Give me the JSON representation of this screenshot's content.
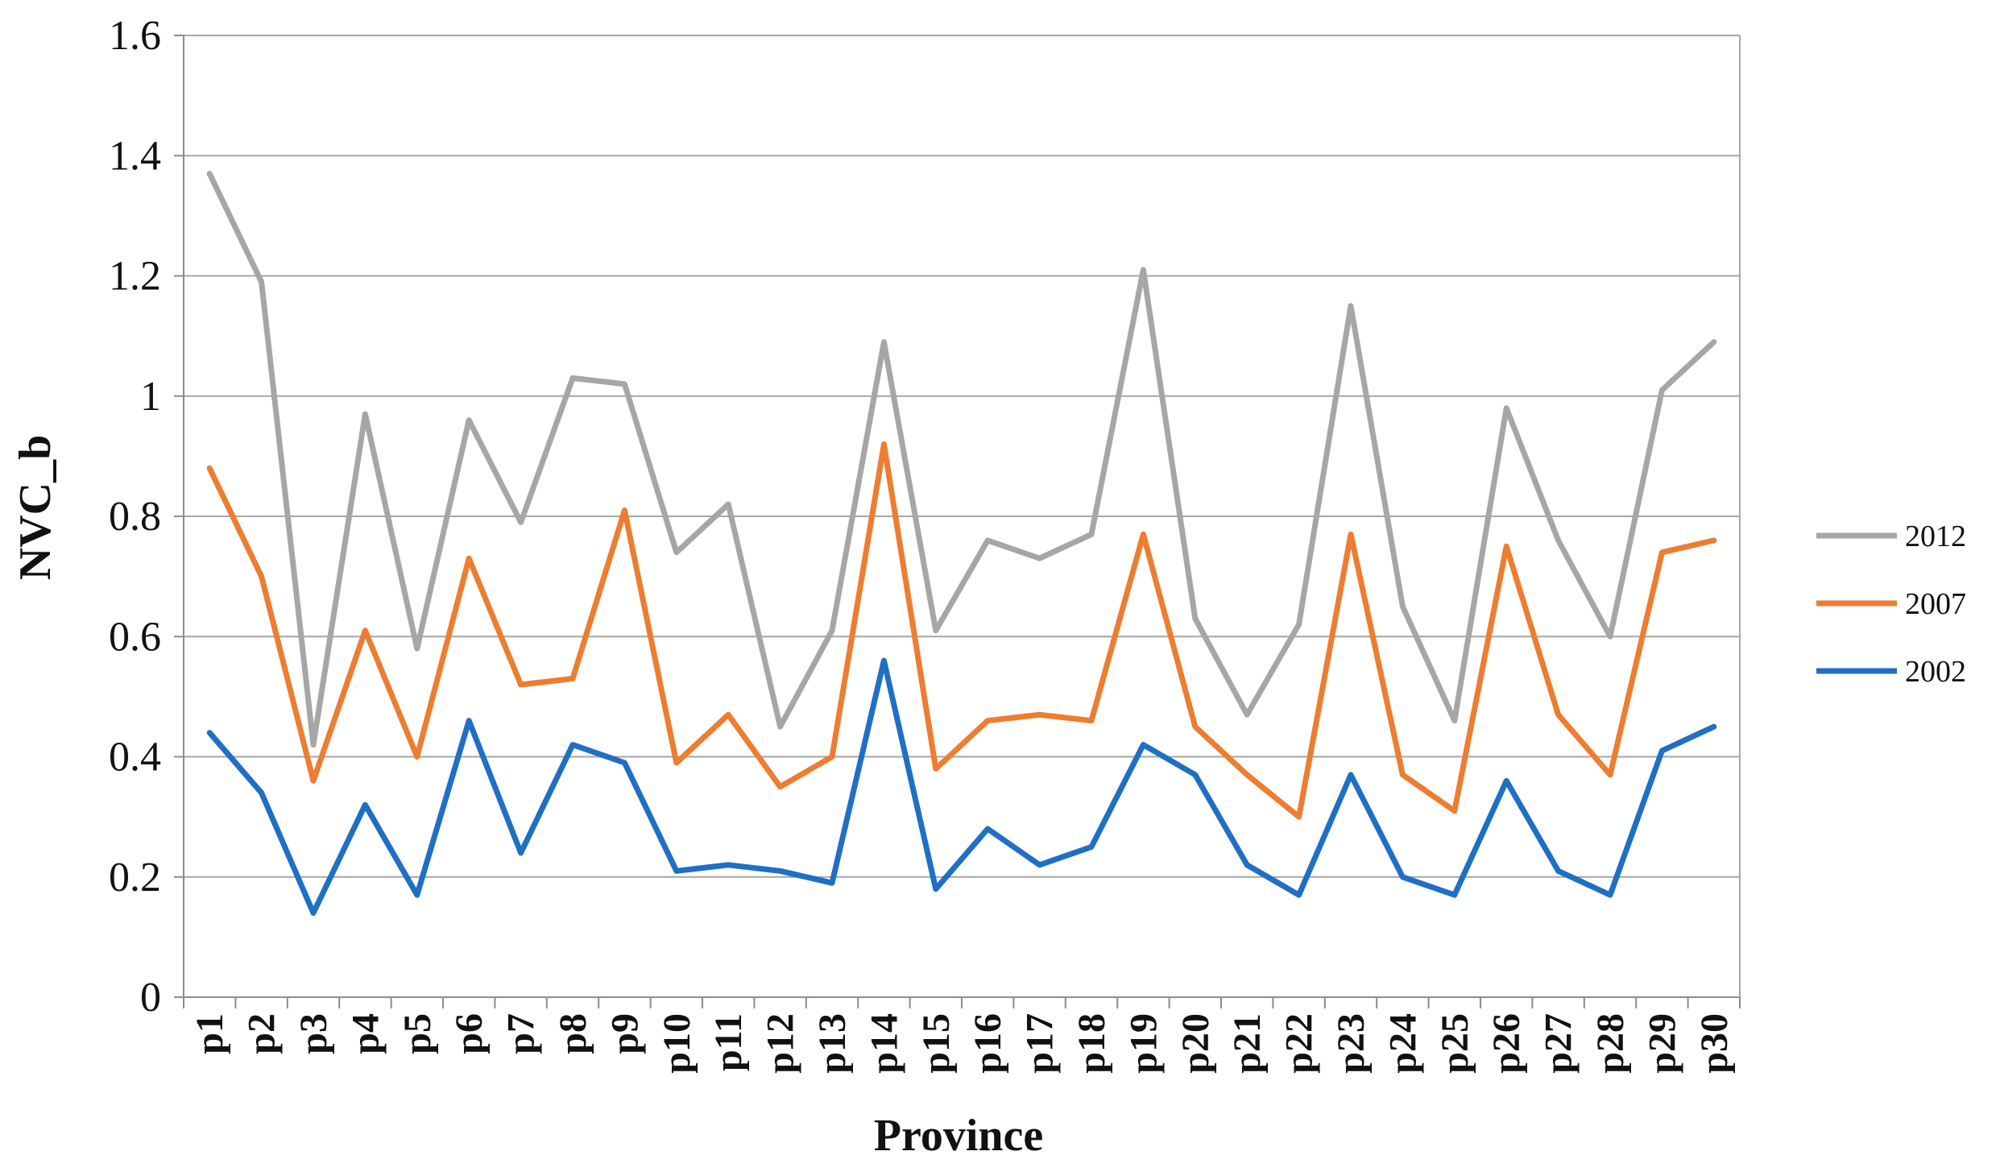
{
  "chart_data": {
    "type": "line",
    "title": "",
    "xlabel": "Province",
    "ylabel": "NVC_b",
    "ylim": [
      0,
      1.6
    ],
    "yticks": [
      "0",
      "0.2",
      "0.4",
      "0.6",
      "0.8",
      "1",
      "1.2",
      "1.4",
      "1.6"
    ],
    "ytick_values": [
      0,
      0.2,
      0.4,
      0.6,
      0.8,
      1.0,
      1.2,
      1.4,
      1.6
    ],
    "grid": true,
    "legend_position": "right",
    "categories": [
      "p1",
      "p2",
      "p3",
      "p4",
      "p5",
      "p6",
      "p7",
      "p8",
      "p9",
      "p10",
      "p11",
      "p12",
      "p13",
      "p14",
      "p15",
      "p16",
      "p17",
      "p18",
      "p19",
      "p20",
      "p21",
      "p22",
      "p23",
      "p24",
      "p25",
      "p26",
      "p27",
      "p28",
      "p29",
      "p30"
    ],
    "series": [
      {
        "name": "2012",
        "color": "#a6a6a6",
        "values": [
          1.37,
          1.19,
          0.42,
          0.97,
          0.58,
          0.96,
          0.79,
          1.03,
          1.02,
          0.74,
          0.82,
          0.45,
          0.61,
          1.09,
          0.61,
          0.76,
          0.73,
          0.77,
          1.21,
          0.63,
          0.47,
          0.62,
          1.15,
          0.65,
          0.46,
          0.98,
          0.76,
          0.6,
          1.01,
          1.09
        ]
      },
      {
        "name": "2007",
        "color": "#ed7d31",
        "values": [
          0.88,
          0.7,
          0.36,
          0.61,
          0.4,
          0.73,
          0.52,
          0.53,
          0.81,
          0.39,
          0.47,
          0.35,
          0.4,
          0.92,
          0.38,
          0.46,
          0.47,
          0.46,
          0.77,
          0.45,
          0.37,
          0.3,
          0.77,
          0.37,
          0.31,
          0.75,
          0.47,
          0.37,
          0.74,
          0.76
        ]
      },
      {
        "name": "2002",
        "color": "#1f6fc5",
        "values": [
          0.44,
          0.34,
          0.14,
          0.32,
          0.17,
          0.46,
          0.24,
          0.42,
          0.39,
          0.21,
          0.22,
          0.21,
          0.19,
          0.56,
          0.18,
          0.28,
          0.22,
          0.25,
          0.42,
          0.37,
          0.22,
          0.17,
          0.37,
          0.2,
          0.17,
          0.36,
          0.21,
          0.17,
          0.41,
          0.45
        ]
      }
    ],
    "legend_order": [
      "2012",
      "2007",
      "2002"
    ]
  },
  "colors": {
    "grid": "#a6a6a6",
    "axis": "#8c8c8c",
    "background": "#ffffff"
  }
}
